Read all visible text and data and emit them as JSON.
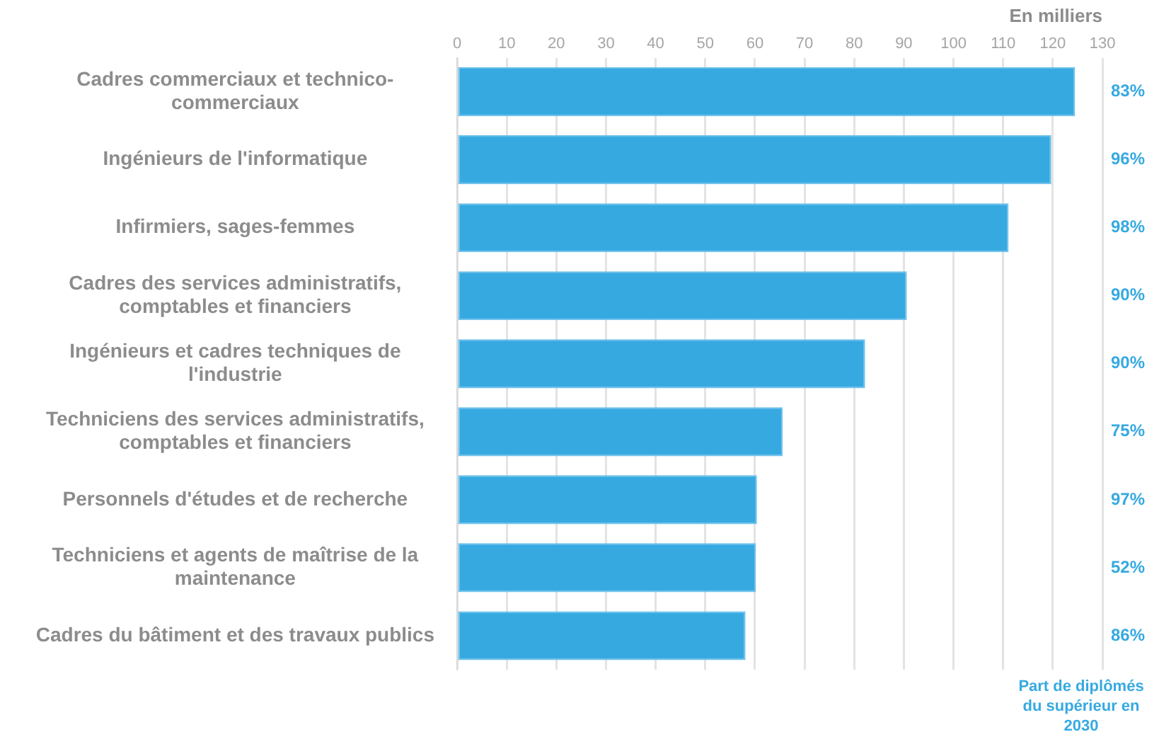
{
  "chart_data": {
    "type": "bar",
    "orientation": "horizontal",
    "xlabel": "En milliers",
    "categories": [
      "Cadres commerciaux et technico-commerciaux",
      "Ingénieurs de l'informatique",
      "Infirmiers, sages-femmes",
      "Cadres des services administratifs, comptables et financiers",
      "Ingénieurs et cadres techniques de l'industrie",
      "Techniciens des services administratifs, comptables et financiers",
      "Personnels d'études et de recherche",
      "Techniciens et agents de maîtrise de la maintenance",
      "Cadres du bâtiment et des travaux publics"
    ],
    "values": [
      124.5,
      119.7,
      111.1,
      90.6,
      82.2,
      65.6,
      60.4,
      60.2,
      58.1
    ],
    "color": "#36a9e1",
    "xlim": [
      0,
      130
    ],
    "xticks": [
      0,
      10,
      20,
      30,
      40,
      50,
      60,
      70,
      80,
      90,
      100,
      110,
      120,
      130
    ],
    "grid": "x",
    "legend": false,
    "annotations": [
      "83%",
      "96%",
      "98%",
      "90%",
      "90%",
      "75%",
      "97%",
      "52%",
      "86%",
      "Part de diplômés du supérieur en 2030"
    ]
  }
}
